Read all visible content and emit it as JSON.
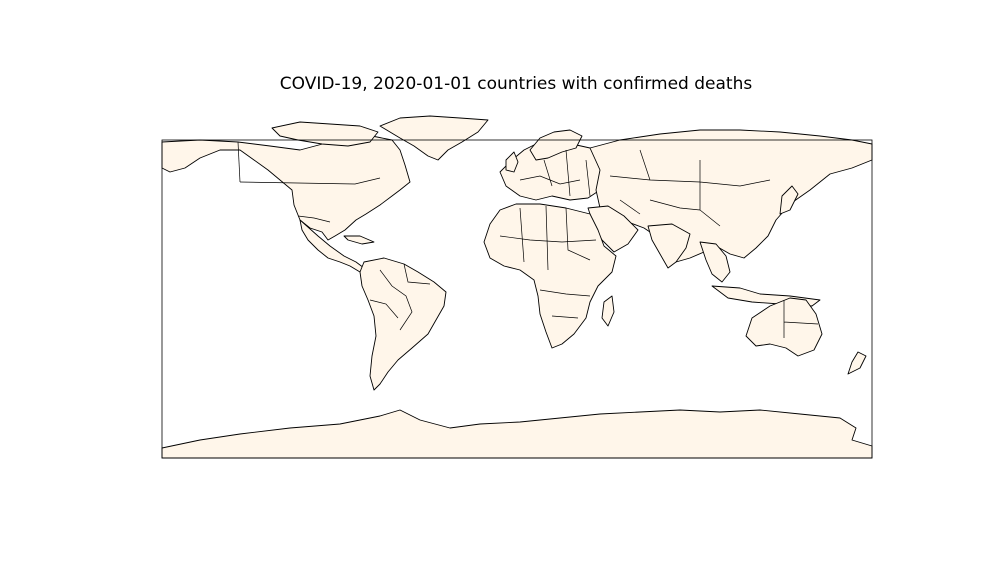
{
  "map": {
    "title": "COVID-19, 2020-01-01 countries with confirmed deaths",
    "projection": "equirectangular",
    "date": "2020-01-01",
    "land_color": "#fff6ea",
    "border_color": "#000000",
    "ocean_color": "#ffffff",
    "highlighted_countries": []
  }
}
